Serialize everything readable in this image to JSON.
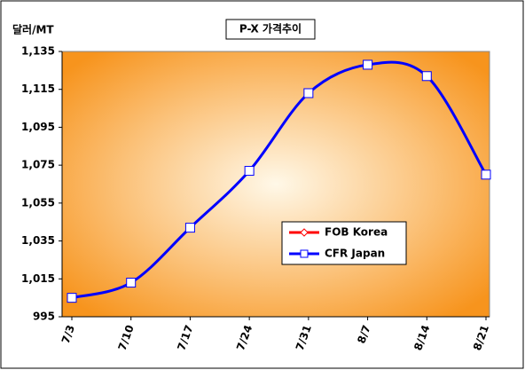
{
  "chart_data": {
    "type": "line",
    "title": "P-X 가격추이",
    "y_label": "달러/MT",
    "categories": [
      "7/3",
      "7/10",
      "7/17",
      "7/24",
      "7/31",
      "8/7",
      "8/14",
      "8/21"
    ],
    "series": [
      {
        "name": "FOB Korea",
        "color": "#ff0000",
        "values": [
          null,
          null,
          null,
          null,
          null,
          null,
          null,
          null
        ]
      },
      {
        "name": "CFR Japan",
        "color": "#0000ff",
        "values": [
          1005,
          1013,
          1042,
          1072,
          1113,
          1128,
          1122,
          1070
        ]
      }
    ],
    "ylim": [
      995,
      1135
    ],
    "yticks": [
      995,
      {
        "value": 1015,
        "label": "1,015"
      },
      {
        "value": 1035,
        "label": "1,035"
      },
      {
        "value": 1055,
        "label": "1,055"
      },
      {
        "value": 1075,
        "label": "1,075"
      },
      {
        "value": 1095,
        "label": "1,095"
      },
      {
        "value": 1115,
        "label": "1,115"
      },
      {
        "value": 1135,
        "label": "1,135"
      }
    ],
    "smooth": true,
    "legend": "inside-right"
  }
}
